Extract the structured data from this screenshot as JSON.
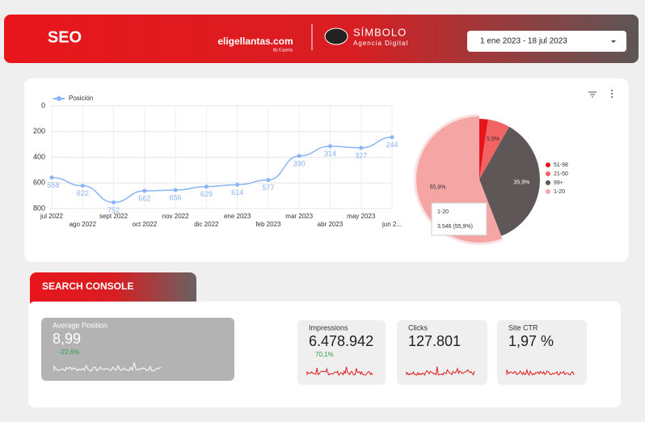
{
  "header": {
    "title": "SEO",
    "logo_text": "eligellantas.com",
    "logo_sub": "By Experts",
    "agency": "SÍMBOLO",
    "agency_sub": "Agencia Digital",
    "date_range": "1 ene 2023 - 18 jul 2023"
  },
  "line_chart": {
    "type": "line",
    "legend": "Posición",
    "categories": [
      "jul 2022",
      "ago 2022",
      "sept 2022",
      "oct 2022",
      "nov 2022",
      "dic 2022",
      "ene 2023",
      "feb 2023",
      "mar 2023",
      "abr 2023",
      "may 2023",
      "jun 2..."
    ],
    "series": [
      {
        "name": "Posición",
        "color": "#8ab4f8",
        "values": [
          558,
          622,
          752,
          662,
          656,
          629,
          614,
          577,
          390,
          314,
          327,
          244
        ]
      }
    ],
    "ylim": [
      800,
      0
    ],
    "yticks": [
      0,
      200,
      400,
      600,
      800
    ],
    "grid": true
  },
  "pie_chart": {
    "type": "pie",
    "categories": [
      "51-98",
      "21-50",
      "99+",
      "1-20"
    ],
    "values": [
      2.3,
      5.9,
      35.9,
      55.9
    ],
    "value_labels": [
      null,
      "5,9%",
      "35,9%",
      "55,9%"
    ],
    "colors": [
      "#e8141b",
      "#f26363",
      "#5f5757",
      "#f6a5a5"
    ],
    "tooltip": {
      "title": "1-20",
      "text": "3.546 (55,9%)"
    }
  },
  "section": {
    "title": "SEARCH CONSOLE"
  },
  "scorecards": [
    {
      "label": "Average Position",
      "value": "8,99",
      "delta": "-22,6%"
    },
    {
      "label": "Impressions",
      "value": "6.478.942",
      "delta": "70,1%"
    },
    {
      "label": "Clicks",
      "value": "127.801"
    },
    {
      "label": "Site CTR",
      "value": "1,97 %"
    }
  ]
}
